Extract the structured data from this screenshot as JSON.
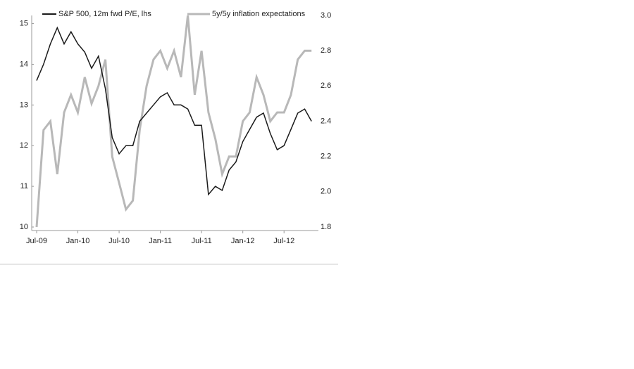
{
  "chart_data": {
    "type": "line",
    "x": [
      "2009-07",
      "2009-08",
      "2009-09",
      "2009-10",
      "2009-11",
      "2009-12",
      "2010-01",
      "2010-02",
      "2010-03",
      "2010-04",
      "2010-05",
      "2010-06",
      "2010-07",
      "2010-08",
      "2010-09",
      "2010-10",
      "2010-11",
      "2010-12",
      "2011-01",
      "2011-02",
      "2011-03",
      "2011-04",
      "2011-05",
      "2011-06",
      "2011-07",
      "2011-08",
      "2011-09",
      "2011-10",
      "2011-11",
      "2011-12",
      "2012-01",
      "2012-02",
      "2012-03",
      "2012-04",
      "2012-05",
      "2012-06",
      "2012-07",
      "2012-08",
      "2012-09",
      "2012-10",
      "2012-11"
    ],
    "xlim": [
      "2009-07",
      "2012-12"
    ],
    "xticks": [
      {
        "value": "2009-07",
        "label": "Jul-09"
      },
      {
        "value": "2010-01",
        "label": "Jan-10"
      },
      {
        "value": "2010-07",
        "label": "Jul-10"
      },
      {
        "value": "2011-01",
        "label": "Jan-11"
      },
      {
        "value": "2011-07",
        "label": "Jul-11"
      },
      {
        "value": "2012-01",
        "label": "Jan-12"
      },
      {
        "value": "2012-07",
        "label": "Jul-12"
      }
    ],
    "ylim": [
      10,
      15.2
    ],
    "yticks": [
      10,
      11,
      12,
      13,
      14,
      15
    ],
    "y2lim": [
      1.8,
      3.0
    ],
    "y2ticks": [
      1.8,
      {
        "value": 2,
        "label": "2.0"
      },
      2.2,
      2.4,
      2.6,
      2.8,
      {
        "value": 3,
        "label": "3.0"
      }
    ],
    "series": [
      {
        "name": "S&P 500, 12m fwd P/E, lhs",
        "color": "#1a1a1a",
        "values": [
          13.6,
          14.0,
          14.5,
          14.9,
          14.5,
          14.8,
          14.5,
          14.3,
          13.9,
          14.2,
          13.4,
          12.2,
          11.8,
          12.0,
          12.0,
          12.6,
          12.8,
          13.0,
          13.2,
          13.3,
          13.0,
          13.0,
          12.9,
          12.5,
          12.5,
          10.8,
          11.0,
          10.9,
          11.4,
          11.6,
          12.1,
          12.4,
          12.7,
          12.8,
          12.3,
          11.9,
          12.0,
          12.4,
          12.8,
          12.9,
          12.6
        ]
      },
      {
        "name": "5y/5y inflation expectations",
        "color": "#b8b8b8",
        "axis": "y2",
        "values": [
          1.8,
          2.35,
          2.4,
          2.1,
          2.45,
          2.55,
          2.45,
          2.65,
          2.5,
          2.6,
          2.75,
          2.2,
          2.05,
          1.9,
          1.95,
          2.35,
          2.6,
          2.75,
          2.8,
          2.7,
          2.8,
          2.65,
          3.0,
          2.55,
          2.8,
          2.45,
          2.3,
          2.1,
          2.2,
          2.2,
          2.4,
          2.45,
          2.65,
          2.55,
          2.4,
          2.45,
          2.45,
          2.55,
          2.75,
          2.8,
          2.8
        ]
      }
    ]
  }
}
